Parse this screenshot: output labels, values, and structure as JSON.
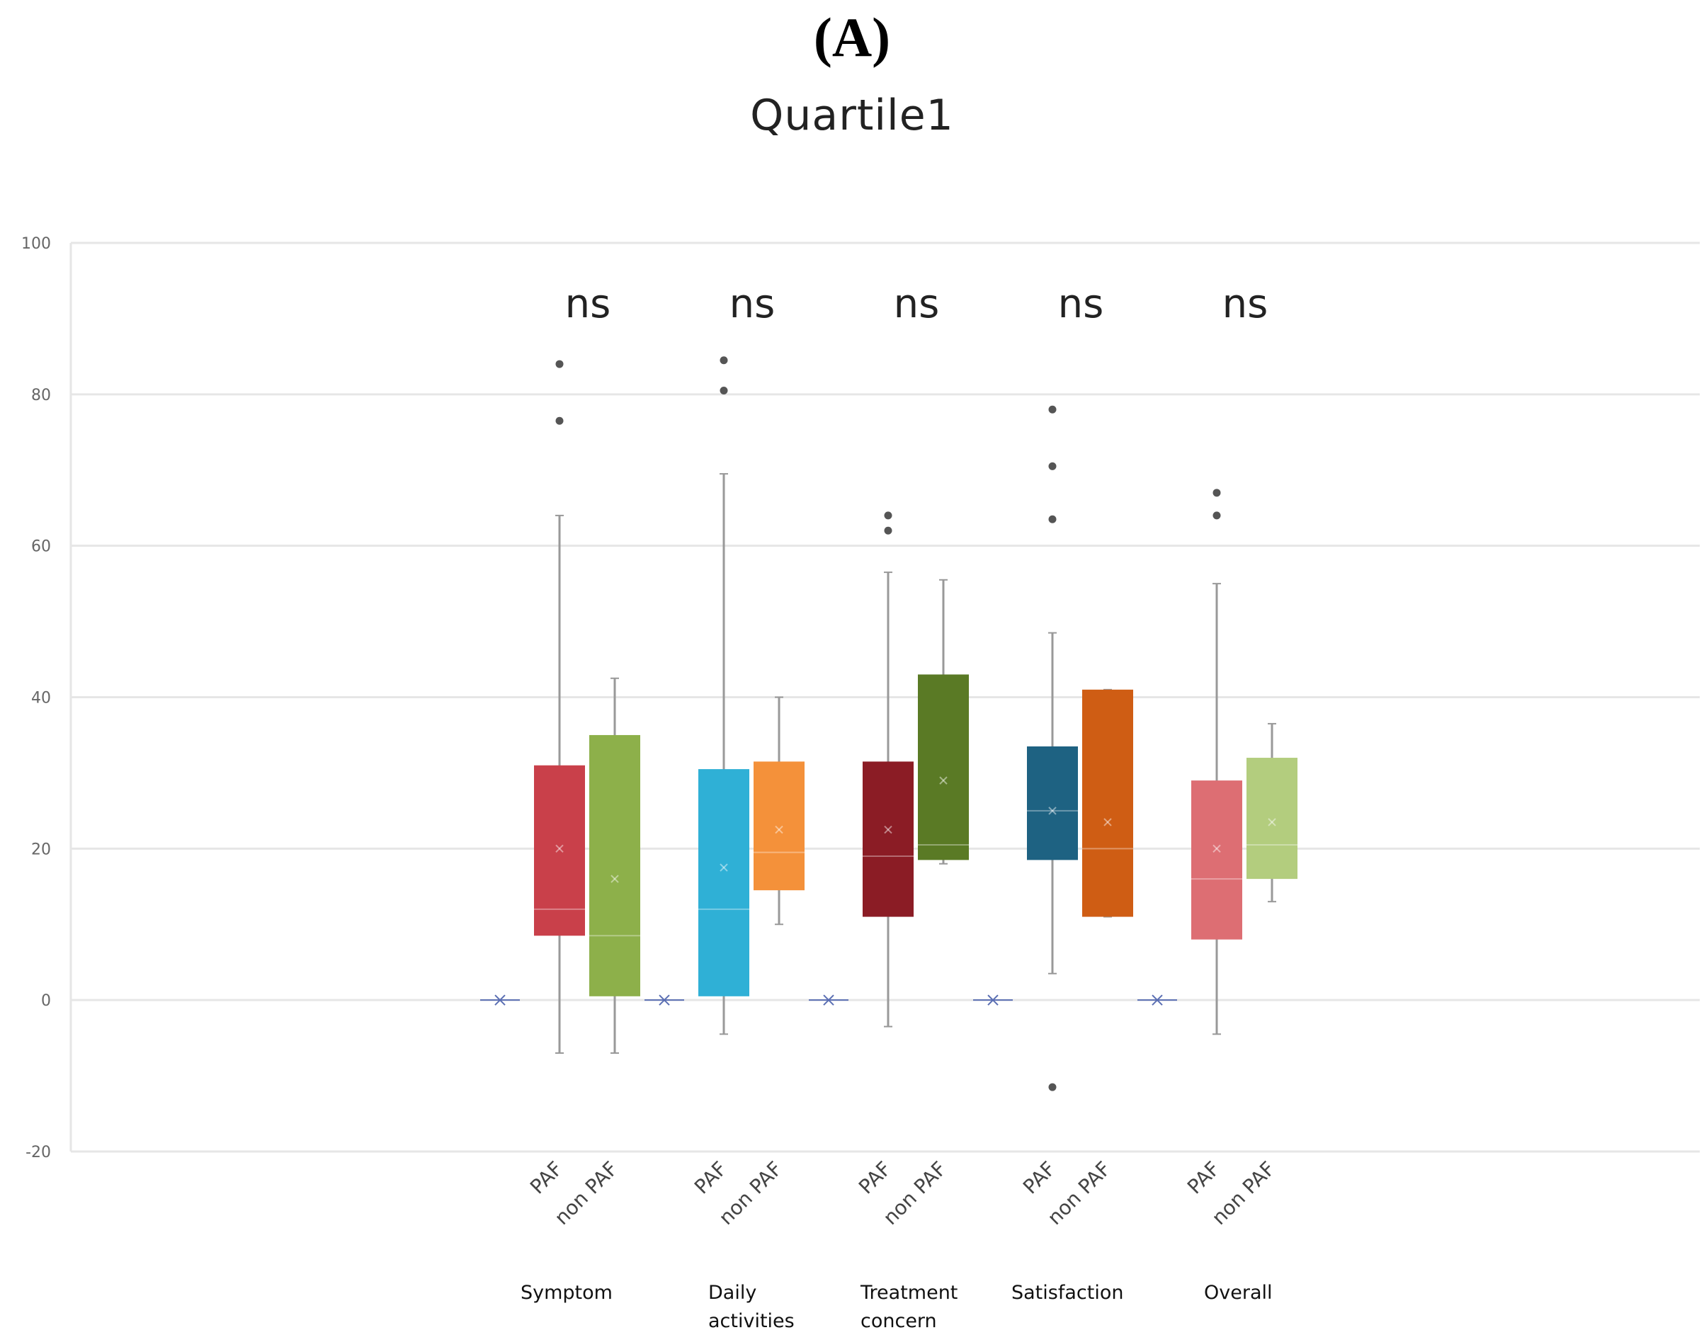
{
  "panel_label": "(A)",
  "colors": {
    "grid": "#e6e6e6",
    "axis_text": "#666666",
    "whisker": "#999999",
    "outlier": "#555555",
    "zero_marker": "#5b6fb3"
  },
  "chart_data": {
    "type": "box",
    "title": "Quartile1",
    "xlabel": "",
    "ylabel": "",
    "ylim": [
      -20,
      100
    ],
    "yticks": [
      -20,
      0,
      20,
      40,
      60,
      80,
      100
    ],
    "grid": true,
    "legend": "none",
    "categories": [
      {
        "label": "Symptom",
        "significance": "ns"
      },
      {
        "label": "Daily\nactivities",
        "significance": "ns"
      },
      {
        "label": "Treatment\nconcern",
        "significance": "ns"
      },
      {
        "label": "Satisfaction",
        "significance": "ns"
      },
      {
        "label": "Overall",
        "significance": "ns"
      }
    ],
    "groups": [
      "PAF",
      "non PAF"
    ],
    "boxes": [
      {
        "category": 0,
        "group": "PAF",
        "color": "#c9404a",
        "min": -7,
        "q1": 8.5,
        "median": 12,
        "q3": 31,
        "max": 64,
        "mean": 20,
        "outliers": [
          84,
          76.5
        ]
      },
      {
        "category": 0,
        "group": "non PAF",
        "color": "#8db04a",
        "min": -7,
        "q1": 0.5,
        "median": 8.5,
        "q3": 35,
        "max": 42.5,
        "mean": 16,
        "outliers": []
      },
      {
        "category": 1,
        "group": "PAF",
        "color": "#2fb0d6",
        "min": -4.5,
        "q1": 0.5,
        "median": 12,
        "q3": 30.5,
        "max": 69.5,
        "mean": 17.5,
        "outliers": [
          84.5,
          80.5
        ]
      },
      {
        "category": 1,
        "group": "non PAF",
        "color": "#f4913a",
        "min": 10,
        "q1": 14.5,
        "median": 19.5,
        "q3": 31.5,
        "max": 40,
        "mean": 22.5,
        "outliers": []
      },
      {
        "category": 2,
        "group": "PAF",
        "color": "#8b1c25",
        "min": -3.5,
        "q1": 11,
        "median": 19,
        "q3": 31.5,
        "max": 56.5,
        "mean": 22.5,
        "outliers": [
          64,
          62
        ]
      },
      {
        "category": 2,
        "group": "non PAF",
        "color": "#5a7a25",
        "min": 18,
        "q1": 18.5,
        "median": 20.5,
        "q3": 43,
        "max": 55.5,
        "mean": 29,
        "outliers": []
      },
      {
        "category": 3,
        "group": "PAF",
        "color": "#1e6282",
        "min": 3.5,
        "q1": 18.5,
        "median": 25,
        "q3": 33.5,
        "max": 48.5,
        "mean": 25,
        "outliers": [
          78,
          70.5,
          63.5,
          -11.5
        ]
      },
      {
        "category": 3,
        "group": "non PAF",
        "color": "#cf5d14",
        "min": 11,
        "q1": 11,
        "median": 20,
        "q3": 41,
        "max": 41,
        "mean": 23.5,
        "outliers": []
      },
      {
        "category": 4,
        "group": "PAF",
        "color": "#dd6e73",
        "min": -4.5,
        "q1": 8,
        "median": 16,
        "q3": 29,
        "max": 55,
        "mean": 20,
        "outliers": [
          67,
          64
        ]
      },
      {
        "category": 4,
        "group": "non PAF",
        "color": "#b3cd7e",
        "min": 13,
        "q1": 16,
        "median": 20.5,
        "q3": 32,
        "max": 36.5,
        "mean": 23.5,
        "outliers": []
      }
    ],
    "zero_markers": [
      0,
      0,
      0,
      0,
      0
    ]
  }
}
